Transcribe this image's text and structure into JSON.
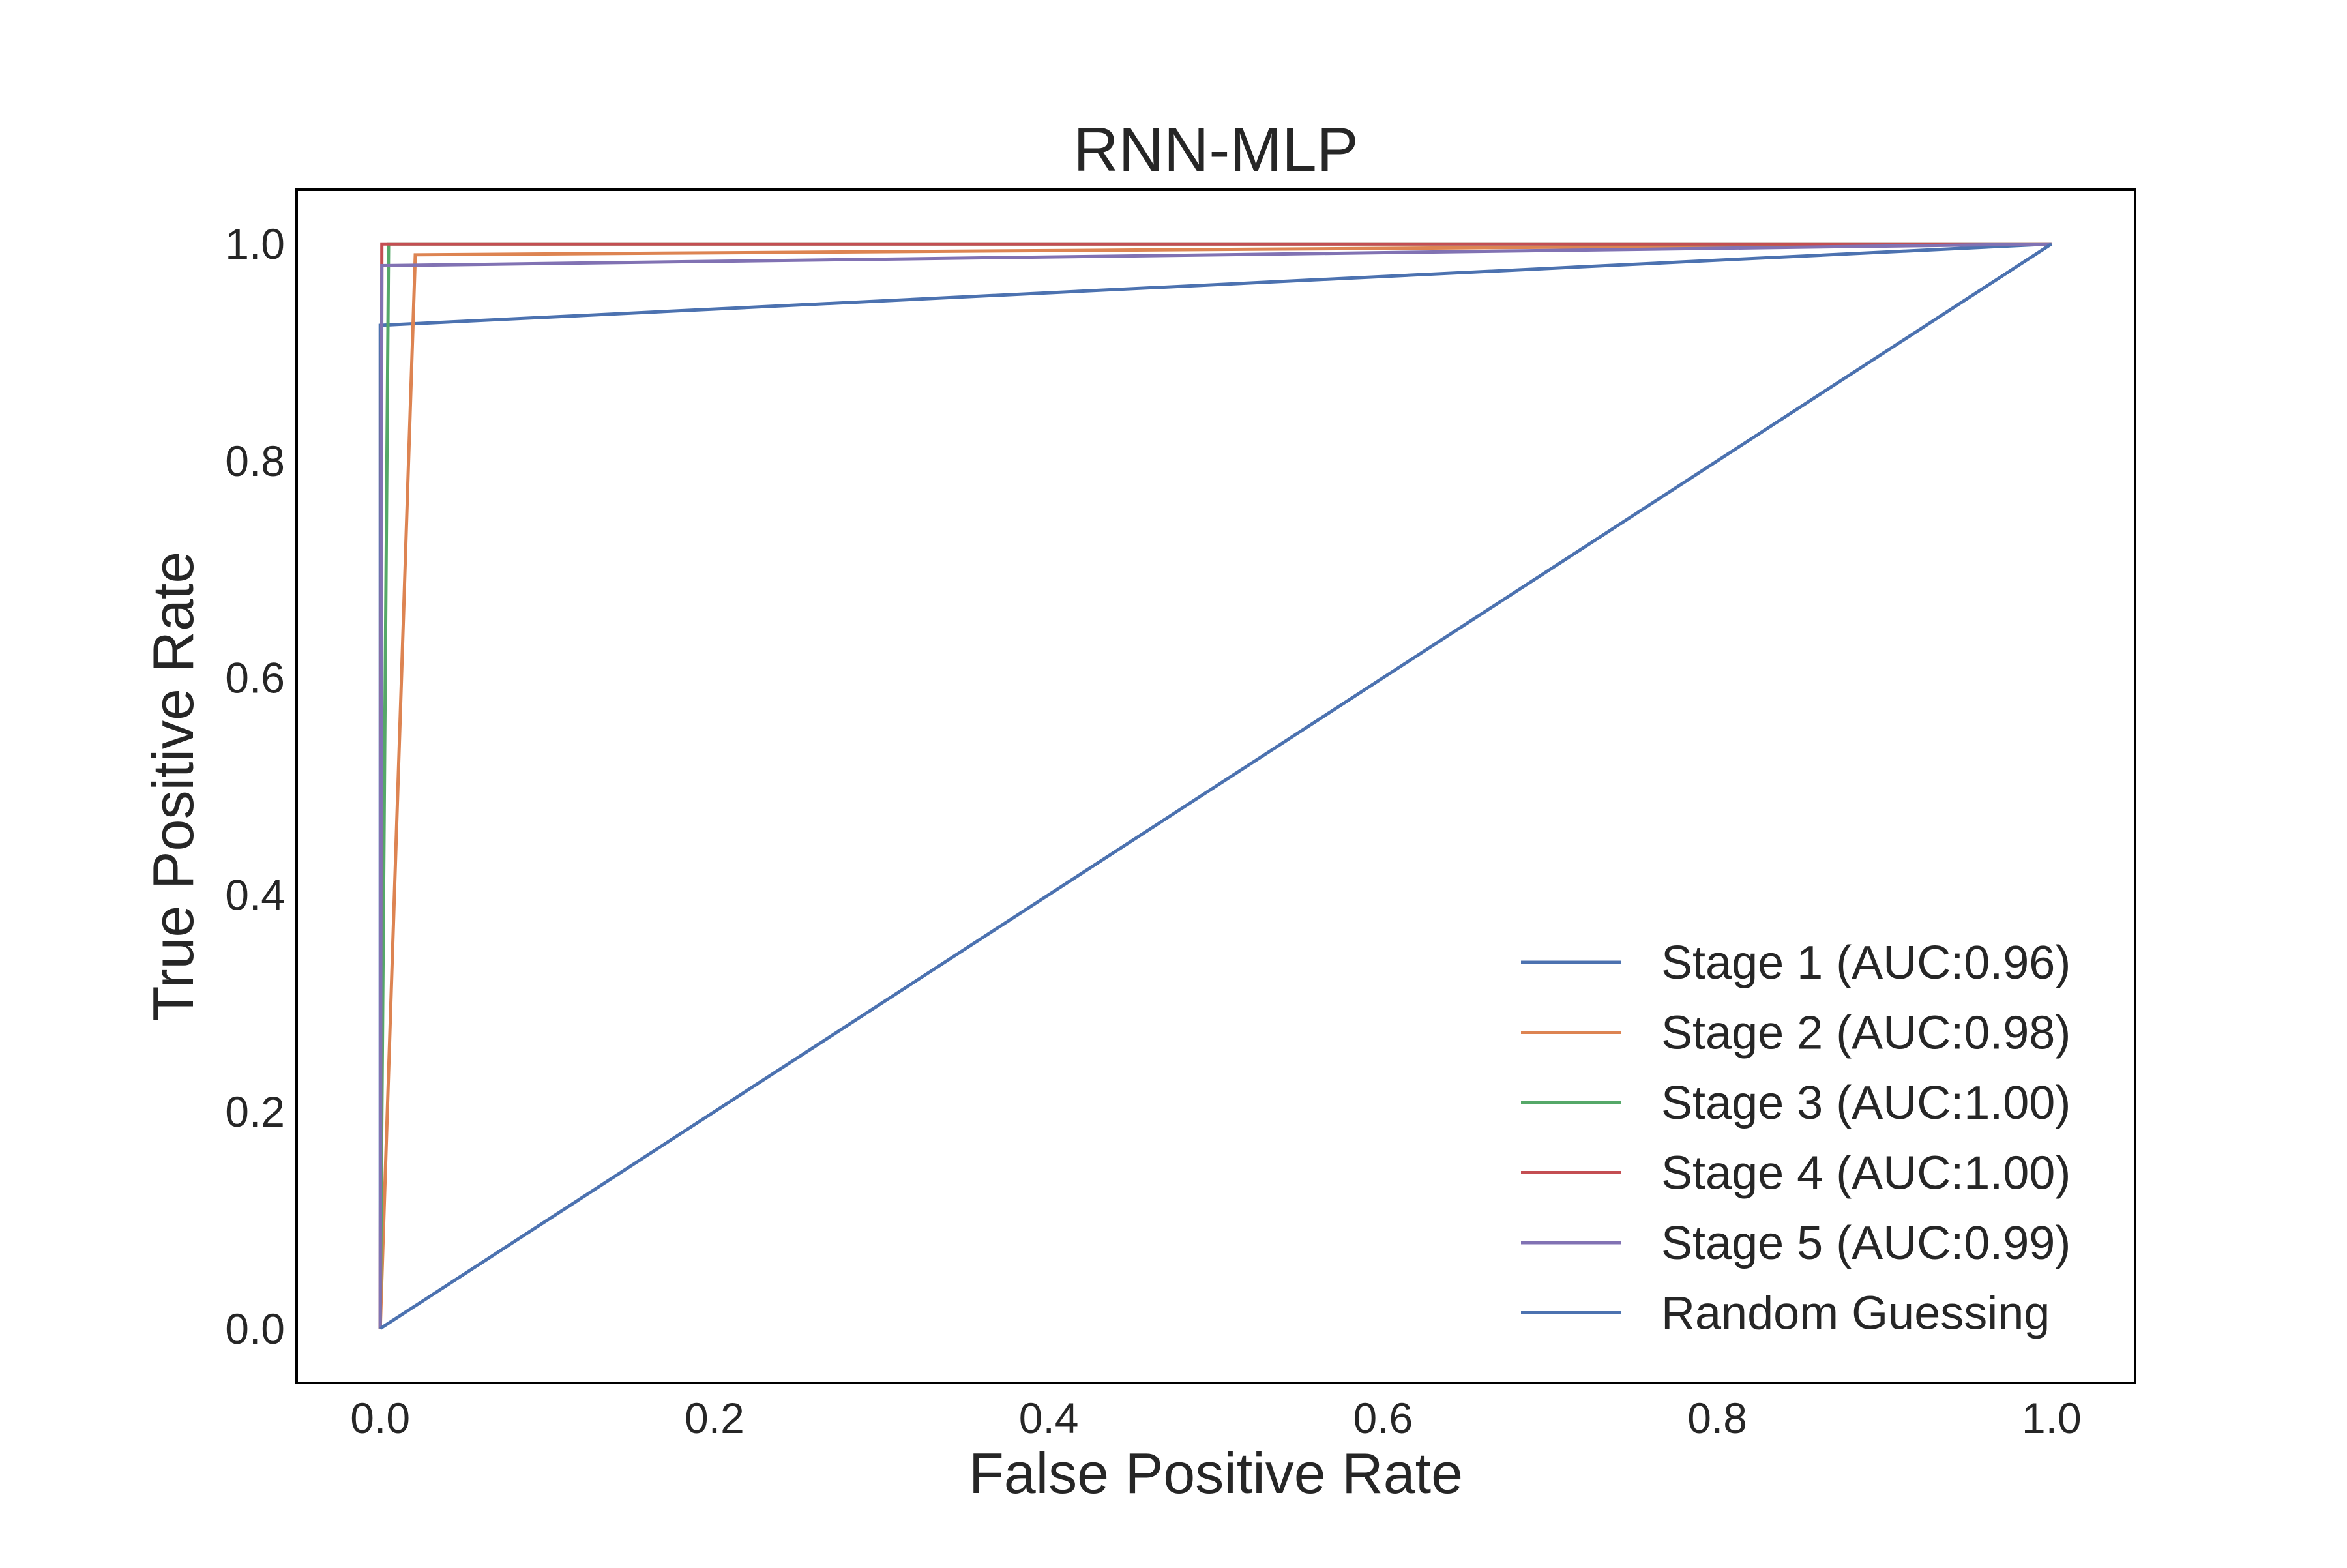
{
  "chart_data": {
    "type": "line",
    "title": "RNN-MLP",
    "xlabel": "False Positive Rate",
    "ylabel": "True Positive Rate",
    "xlim": [
      -0.05,
      1.05
    ],
    "ylim": [
      -0.05,
      1.05
    ],
    "xticks": [
      "0.0",
      "0.2",
      "0.4",
      "0.6",
      "0.8",
      "1.0"
    ],
    "yticks": [
      "0.0",
      "0.2",
      "0.4",
      "0.6",
      "0.8",
      "1.0"
    ],
    "grid": false,
    "legend_position": "lower-right",
    "series": [
      {
        "name": "Stage 1 (AUC:0.96)",
        "color": "#4c72b0",
        "x": [
          0.0,
          0.0,
          1.0
        ],
        "y": [
          0.0,
          0.925,
          1.0
        ]
      },
      {
        "name": "Stage 2 (AUC:0.98)",
        "color": "#dd8452",
        "x": [
          0.0,
          0.021,
          1.0
        ],
        "y": [
          0.0,
          0.99,
          1.0
        ]
      },
      {
        "name": "Stage 3 (AUC:1.00)",
        "color": "#55a868",
        "x": [
          0.0,
          0.005,
          1.0
        ],
        "y": [
          0.0,
          1.0,
          1.0
        ]
      },
      {
        "name": "Stage 4 (AUC:1.00)",
        "color": "#c44e52",
        "x": [
          0.0,
          0.001,
          1.0
        ],
        "y": [
          0.0,
          1.0,
          1.0
        ]
      },
      {
        "name": "Stage 5 (AUC:0.99)",
        "color": "#8172b3",
        "x": [
          0.0,
          0.001,
          1.0
        ],
        "y": [
          0.0,
          0.98,
          1.0
        ]
      },
      {
        "name": "Random Guessing",
        "color": "#4c72b0",
        "x": [
          0.0,
          1.0
        ],
        "y": [
          0.0,
          1.0
        ]
      }
    ]
  }
}
